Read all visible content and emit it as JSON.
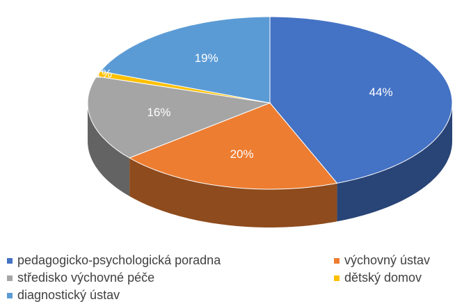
{
  "chart_data": {
    "type": "pie",
    "categories": [
      "pedagogicko-psychologická poradna",
      "výchovný ústav",
      "středisko výchovné péče",
      "dětský domov",
      "diagnostický ústav"
    ],
    "values": [
      44,
      20,
      16,
      1,
      19
    ],
    "value_labels": [
      "44%",
      "20%",
      "16%",
      "1%",
      "19%"
    ],
    "colors": [
      "#4472c4",
      "#ed7d31",
      "#a5a5a5",
      "#ffc000",
      "#5b9bd5"
    ],
    "legend": "bottom"
  }
}
